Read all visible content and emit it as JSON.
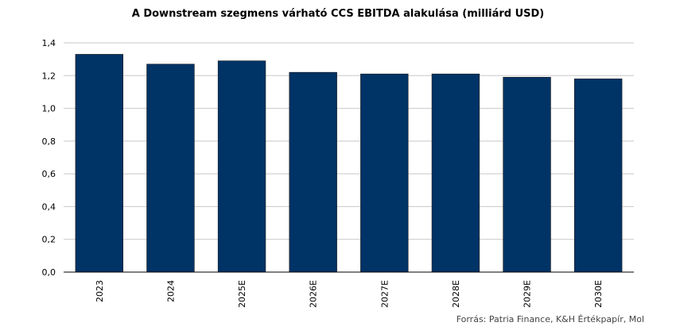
{
  "chart_data": {
    "type": "bar",
    "title": "A Downstream szegmens várható CCS EBITDA alakulása (milliárd USD)",
    "categories": [
      "2023",
      "2024",
      "2025E",
      "2026E",
      "2027E",
      "2028E",
      "2029E",
      "2030E"
    ],
    "values": [
      1.33,
      1.27,
      1.29,
      1.22,
      1.21,
      1.21,
      1.19,
      1.18
    ],
    "ylim": [
      0,
      1.4
    ],
    "yticks": [
      "0,0",
      "0,2",
      "0,4",
      "0,6",
      "0,8",
      "1,0",
      "1,2",
      "1,4"
    ],
    "grid": true,
    "bar_color": "#003366",
    "source": "Forrás: Patria Finance, K&H Értékpapír, Mol"
  }
}
